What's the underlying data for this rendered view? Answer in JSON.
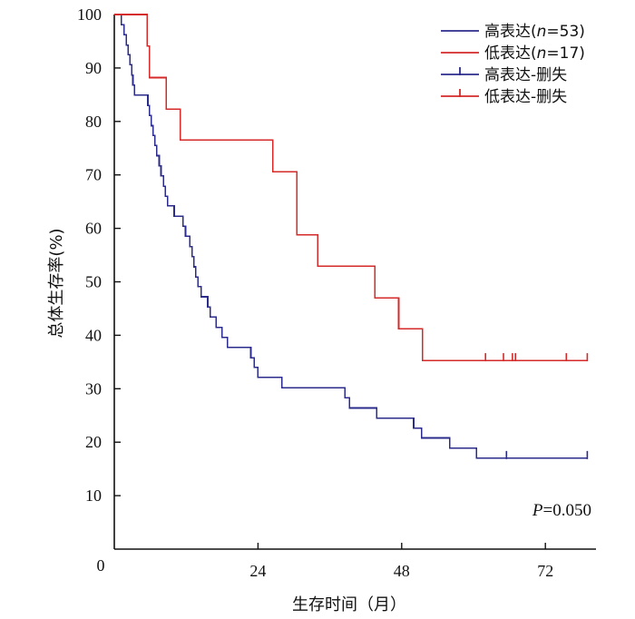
{
  "chart_data": {
    "type": "line",
    "subtype": "kaplan-meier step",
    "xlabel": "生存时间（月）",
    "ylabel": "总体生存率(%)",
    "xlim": [
      0,
      79
    ],
    "ylim": [
      0,
      100
    ],
    "xticks": [
      0,
      24,
      48,
      72
    ],
    "yticks": [
      10,
      20,
      30,
      40,
      50,
      60,
      70,
      80,
      90,
      100
    ],
    "origin_label": "0",
    "annotation": {
      "prefix": "P",
      "value": "=0.050"
    },
    "legend": {
      "placement": "top-right",
      "entries": [
        {
          "label": "高表达",
          "n_prefix": "(",
          "n_var": "n",
          "n_suffix": "=53)",
          "series": "high",
          "style": "line"
        },
        {
          "label": "低表达",
          "n_prefix": "(",
          "n_var": "n",
          "n_suffix": "=17)",
          "series": "low",
          "style": "line"
        },
        {
          "label": "高表达-删失",
          "series": "high",
          "style": "censor"
        },
        {
          "label": "低表达-删失",
          "series": "low",
          "style": "censor"
        }
      ]
    },
    "series": [
      {
        "name": "高表达",
        "key": "high",
        "color": "#2b2b8c",
        "steps": [
          [
            0,
            100
          ],
          [
            1.2,
            98.1
          ],
          [
            1.6,
            96.2
          ],
          [
            2.0,
            94.3
          ],
          [
            2.3,
            92.5
          ],
          [
            2.6,
            90.6
          ],
          [
            2.9,
            88.7
          ],
          [
            3.1,
            86.8
          ],
          [
            3.4,
            84.9
          ],
          [
            5.6,
            83.0
          ],
          [
            5.9,
            81.1
          ],
          [
            6.2,
            79.2
          ],
          [
            6.5,
            77.4
          ],
          [
            6.8,
            75.5
          ],
          [
            7.1,
            73.6
          ],
          [
            7.5,
            71.7
          ],
          [
            7.8,
            69.8
          ],
          [
            8.2,
            67.9
          ],
          [
            8.5,
            66.0
          ],
          [
            8.9,
            64.2
          ],
          [
            10.0,
            62.3
          ],
          [
            11.5,
            60.4
          ],
          [
            11.9,
            58.5
          ],
          [
            12.6,
            56.6
          ],
          [
            13.0,
            54.7
          ],
          [
            13.3,
            52.8
          ],
          [
            13.6,
            50.9
          ],
          [
            14.0,
            49.1
          ],
          [
            14.5,
            47.2
          ],
          [
            15.6,
            45.3
          ],
          [
            16.0,
            43.4
          ],
          [
            17.0,
            41.5
          ],
          [
            18.0,
            39.6
          ],
          [
            18.9,
            37.7
          ],
          [
            22.8,
            35.8
          ],
          [
            23.4,
            34.0
          ],
          [
            24.0,
            32.1
          ],
          [
            28.0,
            30.2
          ],
          [
            38.5,
            28.3
          ],
          [
            39.3,
            26.4
          ],
          [
            43.8,
            24.5
          ],
          [
            50.0,
            22.6
          ],
          [
            51.3,
            20.8
          ],
          [
            56.0,
            18.9
          ],
          [
            60.5,
            17.0
          ]
        ],
        "end_x": 79,
        "censored": [
          65.5,
          79
        ]
      },
      {
        "name": "低表达",
        "key": "low",
        "color": "#d42a2a",
        "steps": [
          [
            0,
            100
          ],
          [
            5.5,
            94.1
          ],
          [
            5.9,
            88.2
          ],
          [
            8.7,
            82.3
          ],
          [
            11.0,
            76.5
          ],
          [
            26.5,
            70.6
          ],
          [
            30.5,
            58.8
          ],
          [
            34.0,
            52.9
          ],
          [
            43.5,
            47.0
          ],
          [
            47.5,
            41.2
          ],
          [
            51.5,
            35.3
          ]
        ],
        "end_x": 79,
        "censored": [
          62.0,
          65.0,
          66.5,
          67.0,
          75.5,
          79
        ]
      }
    ]
  }
}
